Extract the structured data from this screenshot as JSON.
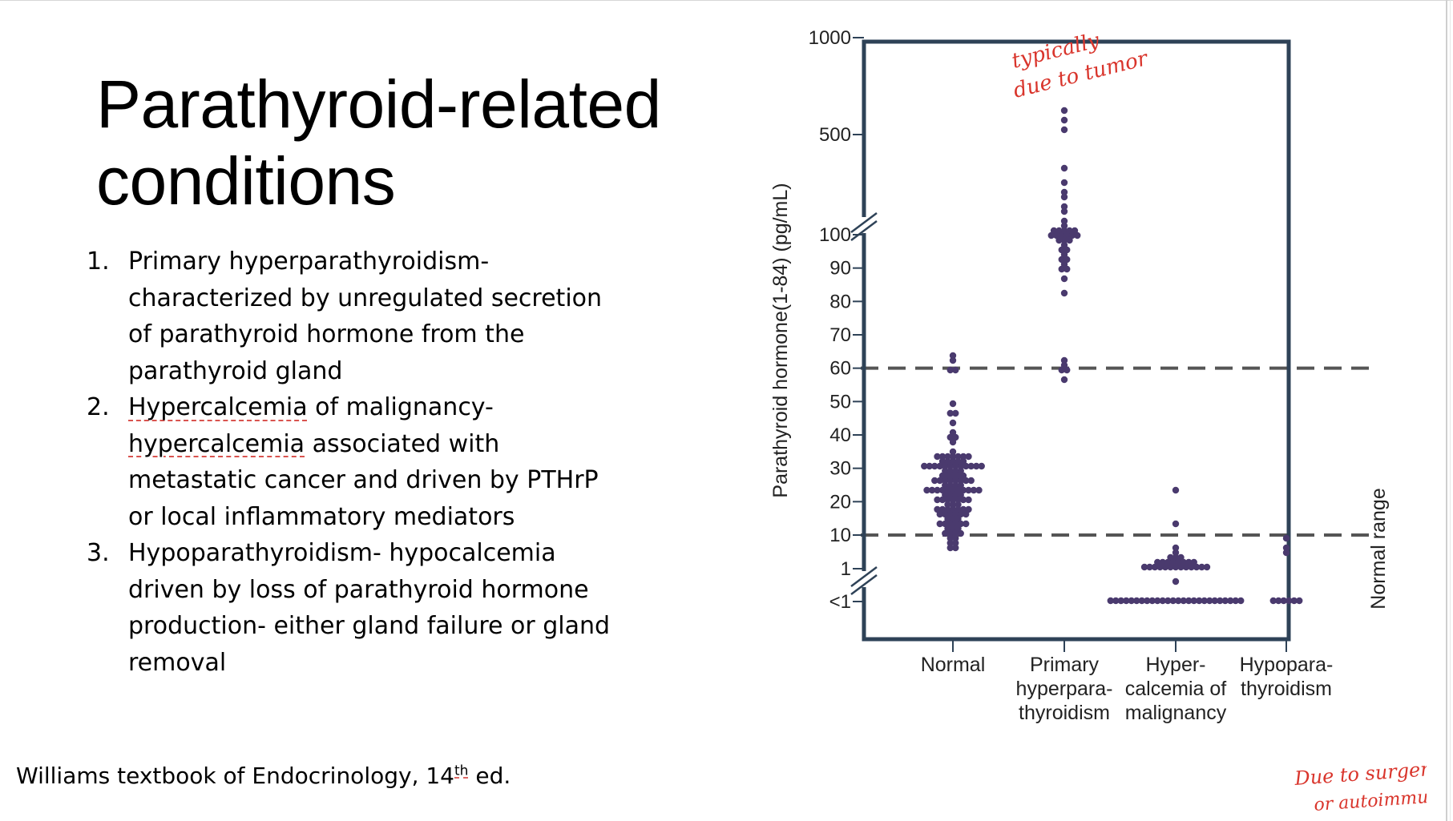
{
  "slide": {
    "title_line1": "Parathyroid-related",
    "title_line2": "conditions",
    "items": [
      {
        "number": "1.",
        "lines": [
          "Primary hyperparathyroidism-",
          "characterized by unregulated secretion",
          "of parathyroid hormone from the",
          "parathyroid gland"
        ]
      },
      {
        "number": "2.",
        "lines": [
          "Hypercalcemia of malignancy-",
          "hypercalcemia associated with",
          "metastatic cancer and driven by PTHrP",
          "or local inflammatory mediators"
        ]
      },
      {
        "number": "3.",
        "lines": [
          "Hypoparathyroidism- hypocalcemia",
          "driven by loss of parathyroid hormone",
          "production- either gland failure or gland",
          "removal"
        ]
      }
    ],
    "citation_pre": "Williams textbook of Endocrinology, 14",
    "citation_sup": "th",
    "citation_post": " ed."
  },
  "annotations": {
    "top_line1": "typically",
    "top_line2": "due to tumor",
    "bottom_line1": "Due to surgery",
    "bottom_line2": "or autoimmune",
    "color": "#d9352c"
  },
  "chart_data": {
    "type": "scatter",
    "ylabel": "Parathyroid hormone(1-84) (pg/mL)",
    "xlabel": "",
    "y_tick_labels": [
      "<1",
      "1",
      "10",
      "20",
      "30",
      "40",
      "50",
      "60",
      "70",
      "80",
      "90",
      "100",
      "500",
      "1000"
    ],
    "y_scale": "broken axis: <1 and 1 at bottom, linear 1-100, compressed 100-1000",
    "ylim": [
      "<1",
      1000
    ],
    "categories": [
      "Normal",
      "Primary hyperpara- thyroidism",
      "Hyper- calcemia of malignancy",
      "Hypopara- thyroidism"
    ],
    "category_lines": [
      [
        "Normal"
      ],
      [
        "Primary",
        "hyperpara-",
        "thyroidism"
      ],
      [
        "Hyper-",
        "calcemia of",
        "malignancy"
      ],
      [
        "Hypopara-",
        "thyroidism"
      ]
    ],
    "reference_lines": [
      10,
      60
    ],
    "reference_label": "Normal range",
    "grid": false,
    "point_color": "#4a3a6e",
    "frame_color": "#2e4257",
    "series": [
      {
        "category": "Normal",
        "values": [
          64,
          62,
          60,
          59,
          50,
          47,
          46,
          44,
          41,
          40,
          39,
          38,
          35,
          34,
          33,
          33,
          33,
          33,
          33,
          33,
          32,
          32,
          32,
          32,
          32,
          31,
          31,
          31,
          31,
          31,
          31,
          30,
          30,
          30,
          30,
          30,
          30,
          29,
          29,
          29,
          29,
          28,
          28,
          28,
          28,
          28,
          27,
          27,
          27,
          27,
          26,
          26,
          26,
          26,
          25,
          25,
          25,
          25,
          24,
          24,
          24,
          24,
          24,
          23,
          23,
          23,
          23,
          23,
          23,
          22,
          22,
          22,
          22,
          21,
          21,
          21,
          20,
          20,
          20,
          20,
          19,
          19,
          19,
          18,
          18,
          18,
          18,
          17,
          17,
          17,
          16,
          16,
          16,
          16,
          16,
          16,
          15,
          15,
          15,
          14,
          14,
          14,
          13,
          13,
          13,
          12,
          12,
          12,
          11,
          11,
          10,
          10,
          9,
          9,
          8,
          8,
          7,
          7
        ]
      },
      {
        "category": "Primary hyperparathyroidism",
        "values": [
          600,
          560,
          520,
          300,
          240,
          205,
          180,
          160,
          140,
          125,
          112,
          108,
          106,
          105,
          104,
          103,
          102,
          102,
          101,
          101,
          100,
          100,
          99,
          99,
          98,
          97,
          96,
          95,
          94,
          93,
          92,
          91,
          90,
          89,
          87,
          82,
          62,
          61,
          60,
          59,
          57
        ]
      },
      {
        "category": "Hypercalcemia of malignancy",
        "values": [
          23,
          13,
          6,
          5,
          4.5,
          4,
          3.5,
          3,
          3,
          2.8,
          2.6,
          2.4,
          2.3,
          2.2,
          2.1,
          2,
          1.9,
          1.8,
          1.7,
          1.6,
          1.5,
          1.4,
          1.3,
          1.2,
          1.1,
          1.05,
          1,
          1,
          0.95,
          "<1",
          "<1",
          "<1",
          "<1",
          "<1",
          "<1",
          "<1",
          "<1",
          "<1",
          "<1",
          "<1",
          "<1",
          "<1",
          "<1",
          "<1",
          "<1",
          "<1",
          "<1",
          "<1",
          "<1",
          "<1",
          "<1",
          "<1",
          "<1",
          "<1",
          "<1"
        ]
      },
      {
        "category": "Hypoparathyroidism",
        "values": [
          9,
          7,
          5,
          "<1",
          "<1",
          "<1",
          "<1",
          "<1",
          "<1"
        ]
      }
    ]
  }
}
